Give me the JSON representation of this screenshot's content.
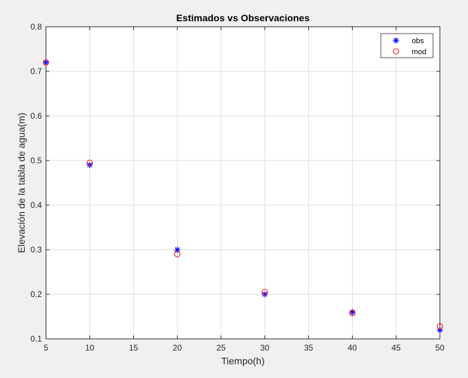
{
  "chart_data": {
    "type": "scatter",
    "title": "Estimados vs Observaciones",
    "xlabel": "Tiempo(h)",
    "ylabel": "Elevación de la tabla de agua(m)",
    "xlim": [
      5,
      50
    ],
    "ylim": [
      0.1,
      0.8
    ],
    "xticks": [
      "5",
      "10",
      "15",
      "20",
      "25",
      "30",
      "35",
      "40",
      "45",
      "50"
    ],
    "yticks": [
      "0.1",
      "0.2",
      "0.3",
      "0.4",
      "0.5",
      "0.6",
      "0.7",
      "0.8"
    ],
    "grid": true,
    "legend_position": "top-right",
    "series": [
      {
        "name": "obs",
        "marker": "asterisk",
        "color": "#0000ff",
        "x": [
          5,
          10,
          20,
          30,
          40,
          50
        ],
        "y": [
          0.72,
          0.49,
          0.3,
          0.2,
          0.16,
          0.12
        ]
      },
      {
        "name": "mod",
        "marker": "circle",
        "color": "#ff0000",
        "x": [
          5,
          10,
          20,
          30,
          40,
          50
        ],
        "y": [
          0.72,
          0.495,
          0.29,
          0.205,
          0.158,
          0.128
        ]
      }
    ]
  }
}
